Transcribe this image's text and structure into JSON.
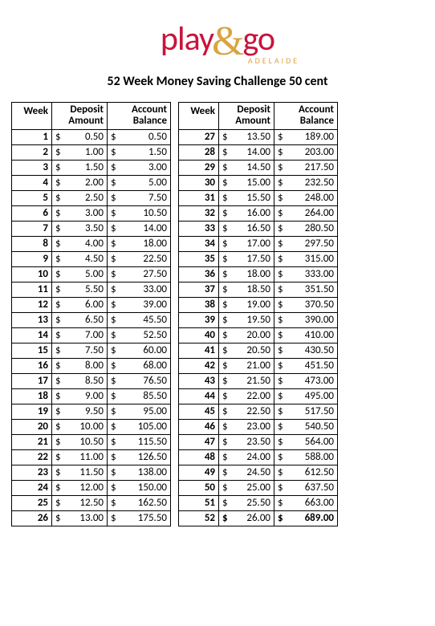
{
  "logo": {
    "play": "play",
    "amp": "&",
    "go": "go",
    "sub": "ADELAIDE"
  },
  "title": "52 Week Money Saving Challenge 50 cent",
  "currency": "$",
  "headers": {
    "week": "Week",
    "deposit1": "Deposit",
    "deposit2": "Amount",
    "balance1": "Account",
    "balance2": "Balance"
  },
  "left": [
    {
      "w": "1",
      "d": "0.50",
      "b": "0.50"
    },
    {
      "w": "2",
      "d": "1.00",
      "b": "1.50"
    },
    {
      "w": "3",
      "d": "1.50",
      "b": "3.00"
    },
    {
      "w": "4",
      "d": "2.00",
      "b": "5.00"
    },
    {
      "w": "5",
      "d": "2.50",
      "b": "7.50"
    },
    {
      "w": "6",
      "d": "3.00",
      "b": "10.50"
    },
    {
      "w": "7",
      "d": "3.50",
      "b": "14.00"
    },
    {
      "w": "8",
      "d": "4.00",
      "b": "18.00"
    },
    {
      "w": "9",
      "d": "4.50",
      "b": "22.50"
    },
    {
      "w": "10",
      "d": "5.00",
      "b": "27.50"
    },
    {
      "w": "11",
      "d": "5.50",
      "b": "33.00"
    },
    {
      "w": "12",
      "d": "6.00",
      "b": "39.00"
    },
    {
      "w": "13",
      "d": "6.50",
      "b": "45.50"
    },
    {
      "w": "14",
      "d": "7.00",
      "b": "52.50"
    },
    {
      "w": "15",
      "d": "7.50",
      "b": "60.00"
    },
    {
      "w": "16",
      "d": "8.00",
      "b": "68.00"
    },
    {
      "w": "17",
      "d": "8.50",
      "b": "76.50"
    },
    {
      "w": "18",
      "d": "9.00",
      "b": "85.50"
    },
    {
      "w": "19",
      "d": "9.50",
      "b": "95.00"
    },
    {
      "w": "20",
      "d": "10.00",
      "b": "105.00"
    },
    {
      "w": "21",
      "d": "10.50",
      "b": "115.50"
    },
    {
      "w": "22",
      "d": "11.00",
      "b": "126.50"
    },
    {
      "w": "23",
      "d": "11.50",
      "b": "138.00"
    },
    {
      "w": "24",
      "d": "12.00",
      "b": "150.00"
    },
    {
      "w": "25",
      "d": "12.50",
      "b": "162.50"
    },
    {
      "w": "26",
      "d": "13.00",
      "b": "175.50"
    }
  ],
  "right": [
    {
      "w": "27",
      "d": "13.50",
      "b": "189.00"
    },
    {
      "w": "28",
      "d": "14.00",
      "b": "203.00"
    },
    {
      "w": "29",
      "d": "14.50",
      "b": "217.50"
    },
    {
      "w": "30",
      "d": "15.00",
      "b": "232.50"
    },
    {
      "w": "31",
      "d": "15.50",
      "b": "248.00"
    },
    {
      "w": "32",
      "d": "16.00",
      "b": "264.00"
    },
    {
      "w": "33",
      "d": "16.50",
      "b": "280.50"
    },
    {
      "w": "34",
      "d": "17.00",
      "b": "297.50"
    },
    {
      "w": "35",
      "d": "17.50",
      "b": "315.00"
    },
    {
      "w": "36",
      "d": "18.00",
      "b": "333.00"
    },
    {
      "w": "37",
      "d": "18.50",
      "b": "351.50"
    },
    {
      "w": "38",
      "d": "19.00",
      "b": "370.50"
    },
    {
      "w": "39",
      "d": "19.50",
      "b": "390.00"
    },
    {
      "w": "40",
      "d": "20.00",
      "b": "410.00"
    },
    {
      "w": "41",
      "d": "20.50",
      "b": "430.50"
    },
    {
      "w": "42",
      "d": "21.00",
      "b": "451.50"
    },
    {
      "w": "43",
      "d": "21.50",
      "b": "473.00"
    },
    {
      "w": "44",
      "d": "22.00",
      "b": "495.00"
    },
    {
      "w": "45",
      "d": "22.50",
      "b": "517.50"
    },
    {
      "w": "46",
      "d": "23.00",
      "b": "540.50"
    },
    {
      "w": "47",
      "d": "23.50",
      "b": "564.00"
    },
    {
      "w": "48",
      "d": "24.00",
      "b": "588.00"
    },
    {
      "w": "49",
      "d": "24.50",
      "b": "612.50"
    },
    {
      "w": "50",
      "d": "25.00",
      "b": "637.50"
    },
    {
      "w": "51",
      "d": "25.50",
      "b": "663.00"
    },
    {
      "w": "52",
      "d": "26.00",
      "b": "689.00"
    }
  ]
}
